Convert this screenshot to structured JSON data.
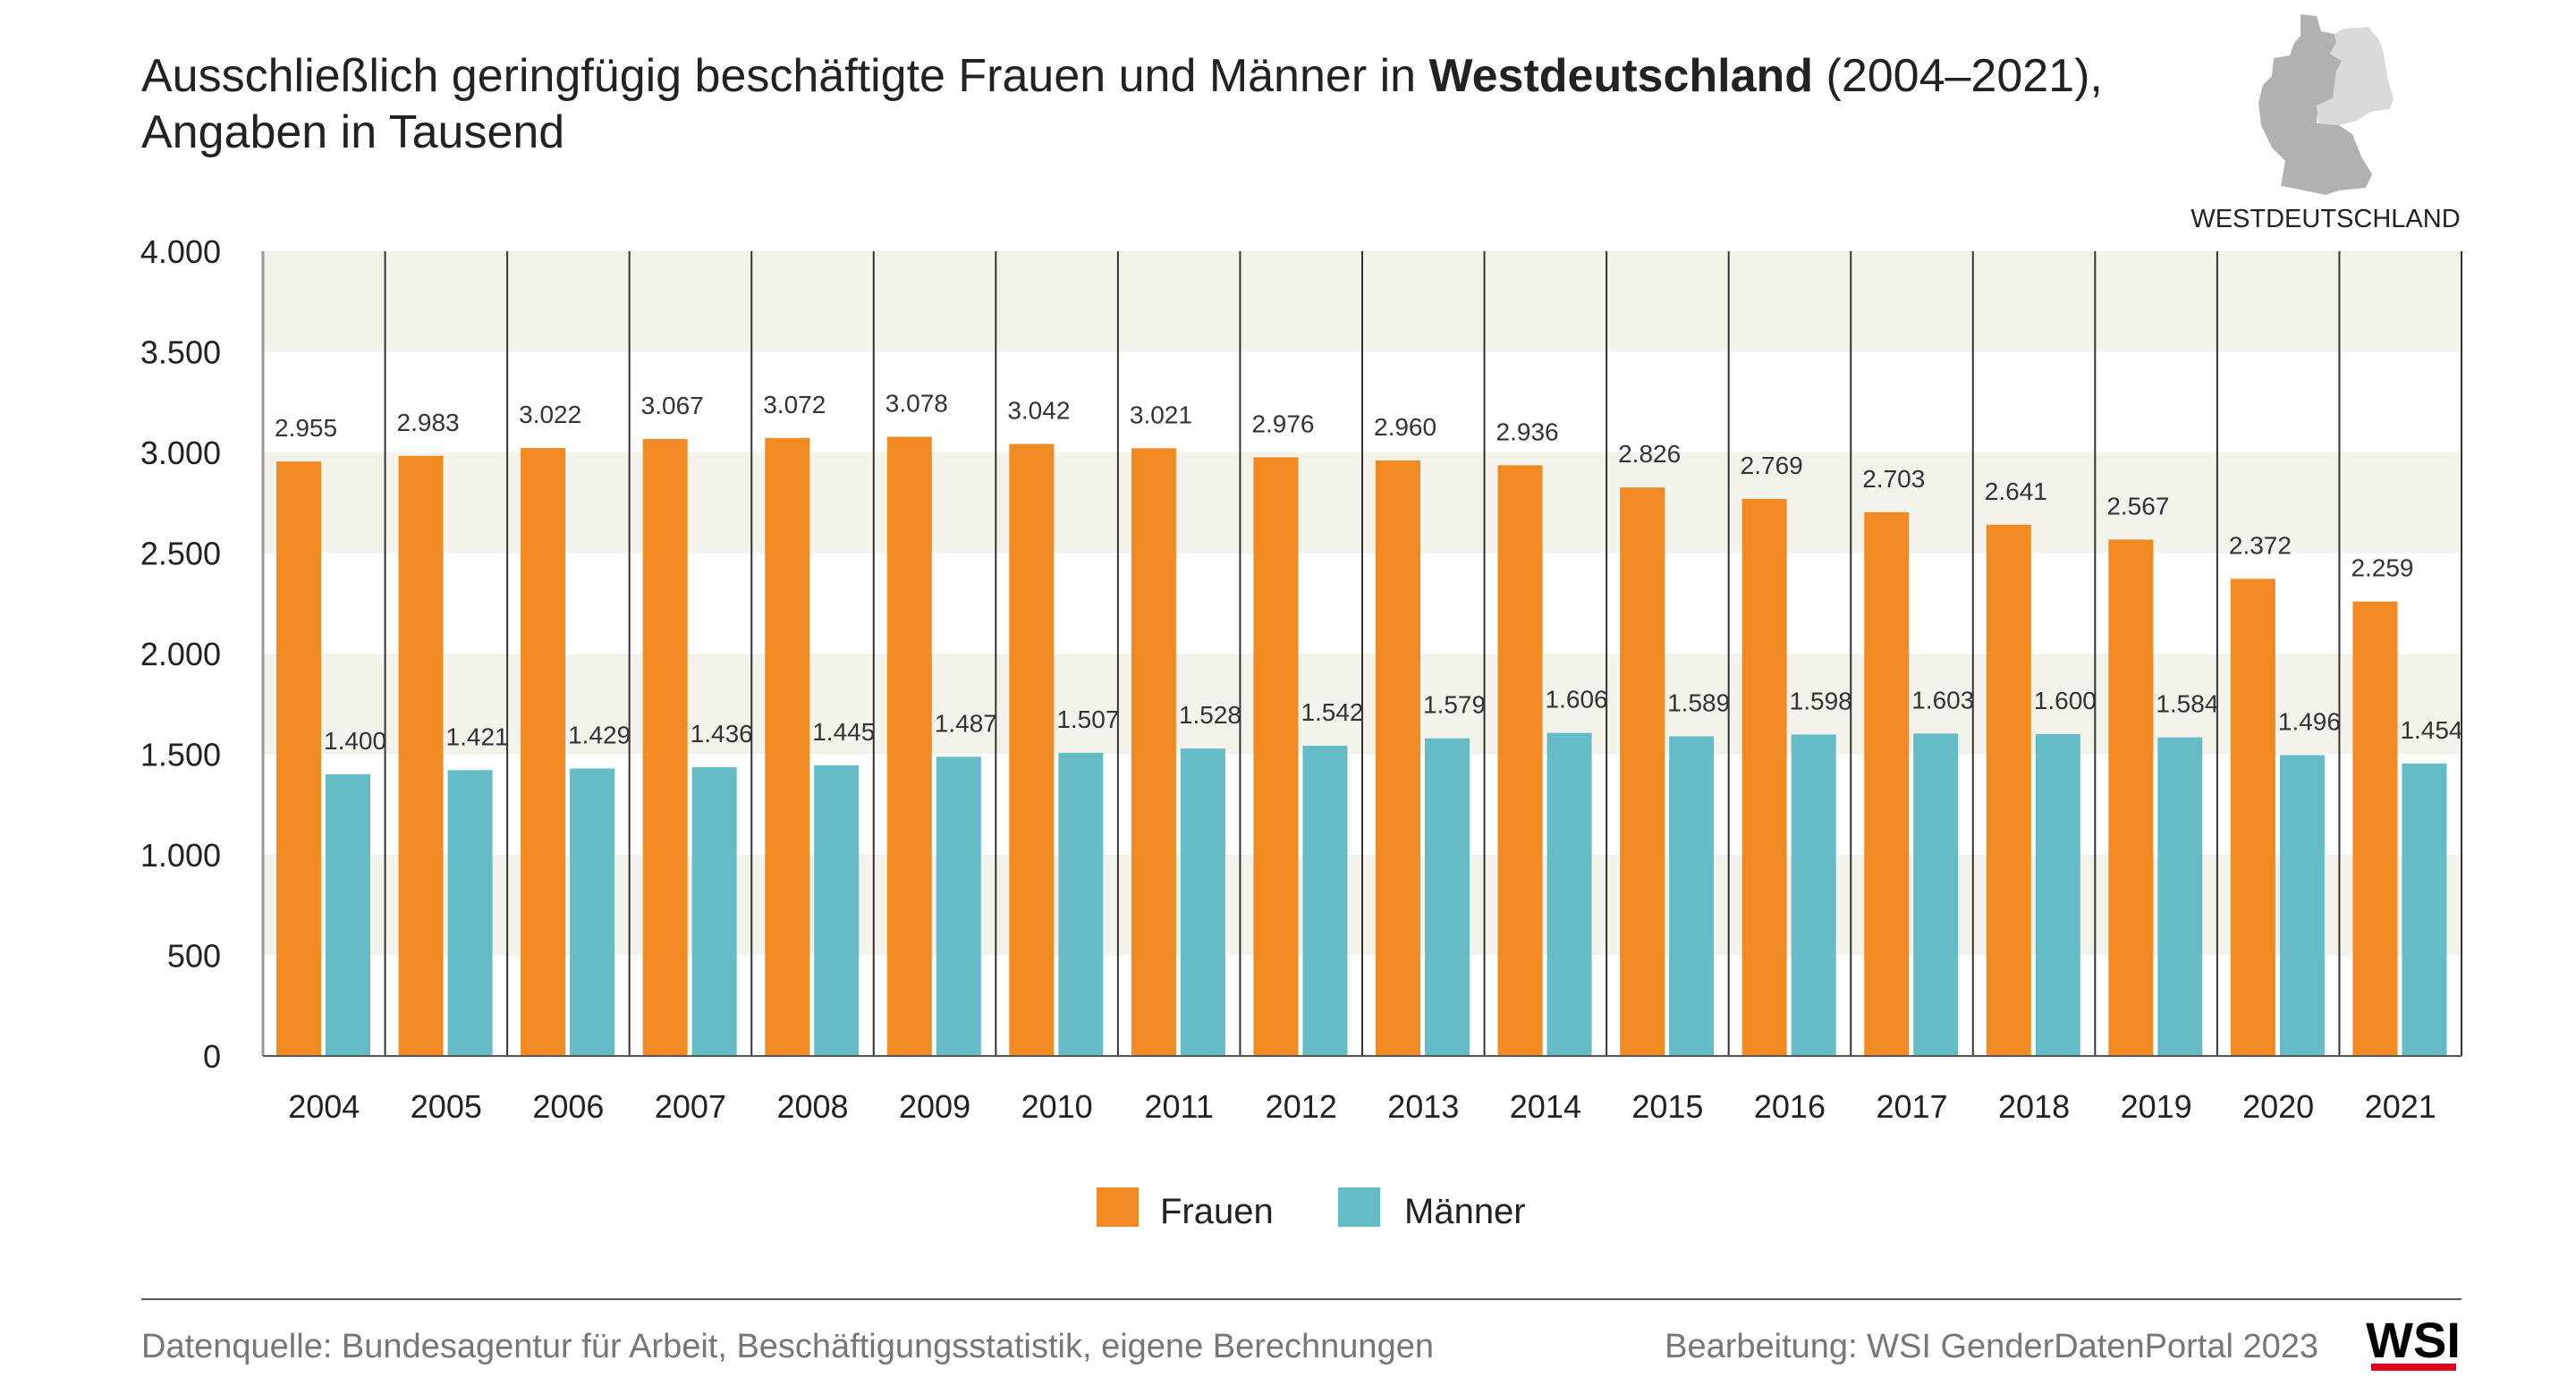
{
  "title": {
    "line1_pre": "Ausschließlich geringfügig beschäftigte Frauen und Männer in ",
    "line1_bold": "Westdeutschland",
    "line1_post": " (2004–2021),",
    "line2": "Angaben in Tausend"
  },
  "map": {
    "label": "WESTDEUTSCHLAND",
    "highlight_color": "#b0b1b3",
    "other_color": "#d9dadb"
  },
  "footer": {
    "source": "Datenquelle: Bundesagentur für Arbeit, Beschäftigungsstatistik, eigene Berechnungen",
    "credit": "Bearbeitung: WSI GenderDatenPortal 2023",
    "logo": "WSI"
  },
  "chart_data": {
    "type": "bar",
    "categories": [
      "2004",
      "2005",
      "2006",
      "2007",
      "2008",
      "2009",
      "2010",
      "2011",
      "2012",
      "2013",
      "2014",
      "2015",
      "2016",
      "2017",
      "2018",
      "2019",
      "2020",
      "2021"
    ],
    "series": [
      {
        "name": "Frauen",
        "color": "#f28a24",
        "values": [
          2955,
          2983,
          3022,
          3067,
          3072,
          3078,
          3042,
          3021,
          2976,
          2960,
          2936,
          2826,
          2769,
          2703,
          2641,
          2567,
          2372,
          2259
        ]
      },
      {
        "name": "Männer",
        "color": "#65bbc6",
        "values": [
          1400,
          1421,
          1429,
          1436,
          1445,
          1487,
          1507,
          1528,
          1542,
          1579,
          1606,
          1589,
          1598,
          1603,
          1600,
          1584,
          1496,
          1454
        ]
      }
    ],
    "ylim": [
      0,
      4000
    ],
    "yticks": [
      0,
      500,
      1000,
      1500,
      2000,
      2500,
      3000,
      3500,
      4000
    ],
    "ytick_labels": [
      "0",
      "500",
      "1.000",
      "1.500",
      "2.000",
      "2.500",
      "3.000",
      "3.500",
      "4.000"
    ],
    "band_color": "#f3f3ec",
    "legend_position": "bottom-center",
    "data_labels": true,
    "grid": "alternating horizontal bands"
  }
}
